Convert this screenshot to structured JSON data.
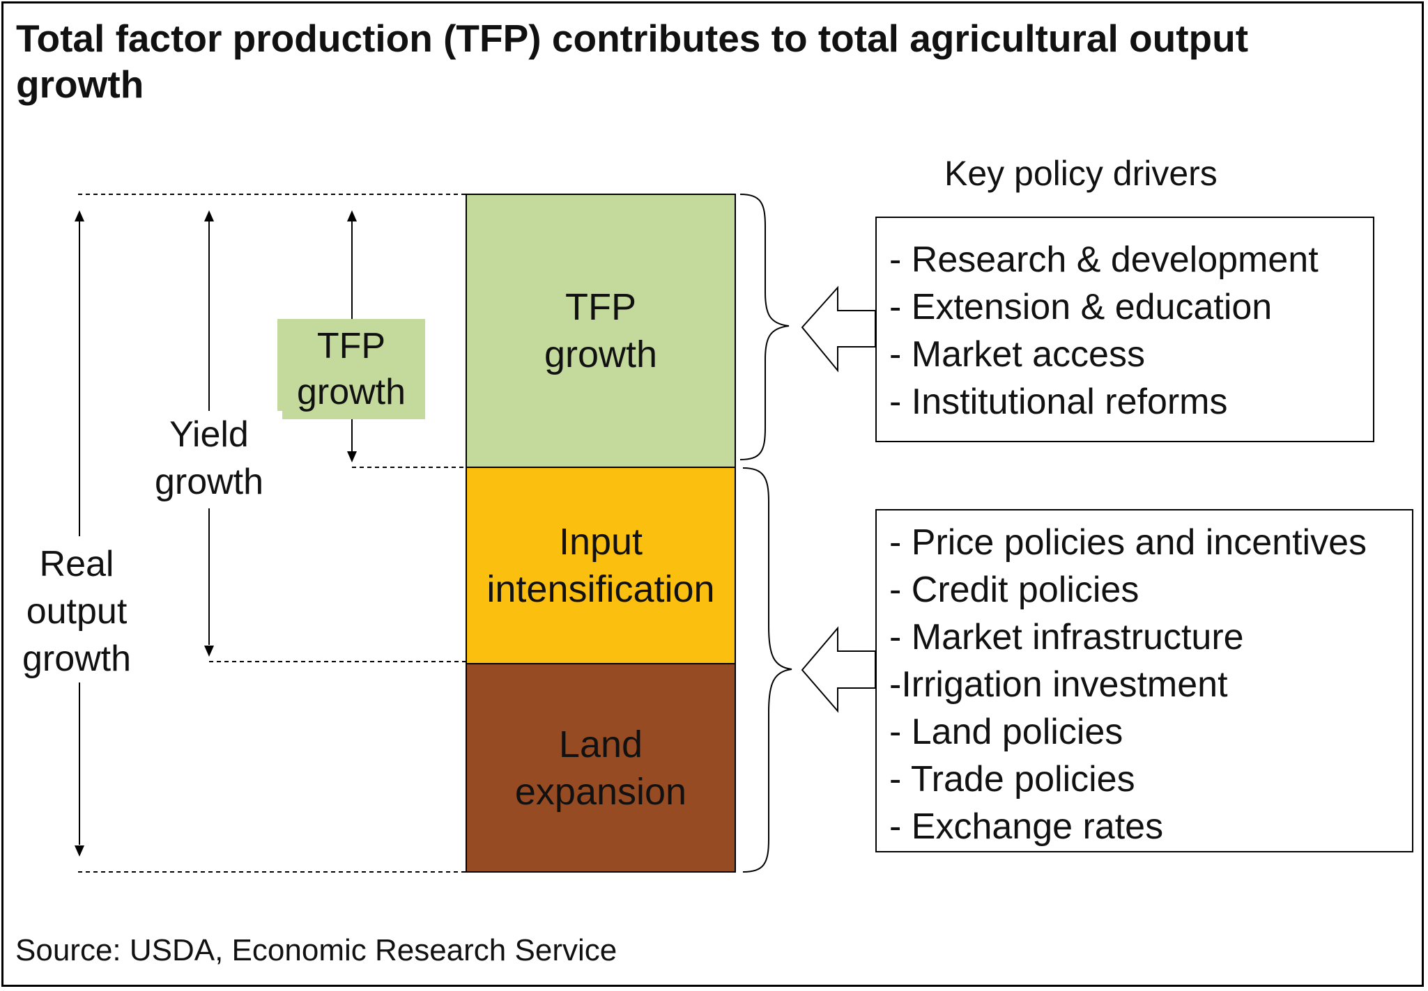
{
  "title": "Total factor production (TFP) contributes to total agricultural output growth",
  "source": "Source: USDA, Economic Research Service",
  "drivers_heading": "Key policy drivers",
  "blocks": {
    "tfp": {
      "line1": "TFP",
      "line2": "growth",
      "color": "#c4da9c"
    },
    "input": {
      "line1": "Input",
      "line2": "intensification",
      "color": "#fbbf10"
    },
    "land": {
      "line1": "Land",
      "line2": "expansion",
      "color": "#964b22"
    }
  },
  "measures": {
    "tfp": {
      "line1": "TFP",
      "line2": "growth"
    },
    "yield": {
      "line1": "Yield",
      "line2": "growth"
    },
    "real": {
      "line1": "Real",
      "line2": "output",
      "line3": "growth"
    }
  },
  "drivers_tfp": [
    "- Research & development",
    "- Extension & education",
    "- Market access",
    "- Institutional reforms"
  ],
  "drivers_other": [
    "- Price policies and incentives",
    "- Credit policies",
    "- Market infrastructure",
    "-Irrigation investment",
    "- Land policies",
    "- Trade policies",
    "- Exchange rates"
  ]
}
